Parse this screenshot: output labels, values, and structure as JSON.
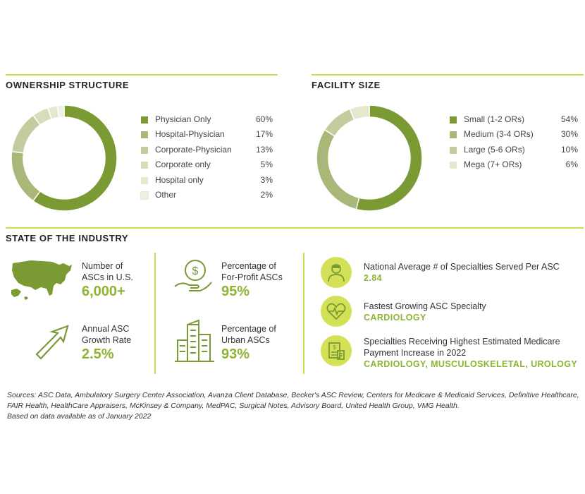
{
  "chart_data": [
    {
      "type": "pie",
      "title": "OWNERSHIP STRUCTURE",
      "categories": [
        "Physician Only",
        "Hospital-Physician",
        "Corporate-Physician",
        "Corporate only",
        "Hospital only",
        "Other"
      ],
      "values": [
        60,
        17,
        13,
        5,
        3,
        2
      ],
      "value_labels": [
        "60%",
        "17%",
        "13%",
        "5%",
        "3%",
        "2%"
      ],
      "colors": [
        "#7a9a34",
        "#a9b878",
        "#c2cc9c",
        "#d6ddb9",
        "#e3e8cf",
        "#eef1e2"
      ],
      "legend": "right"
    },
    {
      "type": "pie",
      "title": "FACILITY SIZE",
      "categories": [
        "Small (1-2 ORs)",
        "Medium (3-4 ORs)",
        "Large (5-6 ORs)",
        "Mega (7+ ORs)"
      ],
      "values": [
        54,
        30,
        10,
        6
      ],
      "value_labels": [
        "54%",
        "30%",
        "10%",
        "6%"
      ],
      "colors": [
        "#7a9a34",
        "#a9b878",
        "#c2cc9c",
        "#e3e8cf"
      ],
      "legend": "right"
    }
  ],
  "industry": {
    "title": "STATE OF THE INDUSTRY",
    "stats": [
      {
        "icon": "us-map-icon",
        "label1": "Number of",
        "label2": "ASCs in U.S.",
        "value": "6,000+"
      },
      {
        "icon": "dollar-hand-icon",
        "label1": "Percentage of",
        "label2": "For-Profit ASCs",
        "value": "95%"
      },
      {
        "icon": "growth-arrow-icon",
        "label1": "Annual ASC",
        "label2": "Growth Rate",
        "value": "2.5%"
      },
      {
        "icon": "city-buildings-icon",
        "label1": "Percentage of",
        "label2": "Urban ASCs",
        "value": "93%"
      }
    ],
    "right_stats": [
      {
        "icon": "doctor-icon",
        "label1": "National Average # of Specialties Served Per ASC",
        "label2": "",
        "value": "2.84"
      },
      {
        "icon": "heart-pulse-icon",
        "label1": "Fastest Growing ASC Specialty",
        "label2": "",
        "value": "CARDIOLOGY"
      },
      {
        "icon": "payment-document-icon",
        "label1": "Specialties Receiving Highest Estimated Medicare",
        "label2": "Payment Increase in 2022",
        "value": "CARDIOLOGY, MUSCULOSKELETAL, UROLOGY"
      }
    ]
  },
  "sources": {
    "line1": "Sources: ASC Data, Ambulatory Surgery Center Association, Avanza Client Database, Becker's ASC Review, Centers for Medicare & Medicaid Services, Definitive Healthcare, FAIR Health, HealthCare Appraisers, McKinsey & Company, MedPAC, Surgical Notes, Advisory Board, United Health Group, VMG Health.",
    "line2": "Based on data available as of January 2022"
  }
}
